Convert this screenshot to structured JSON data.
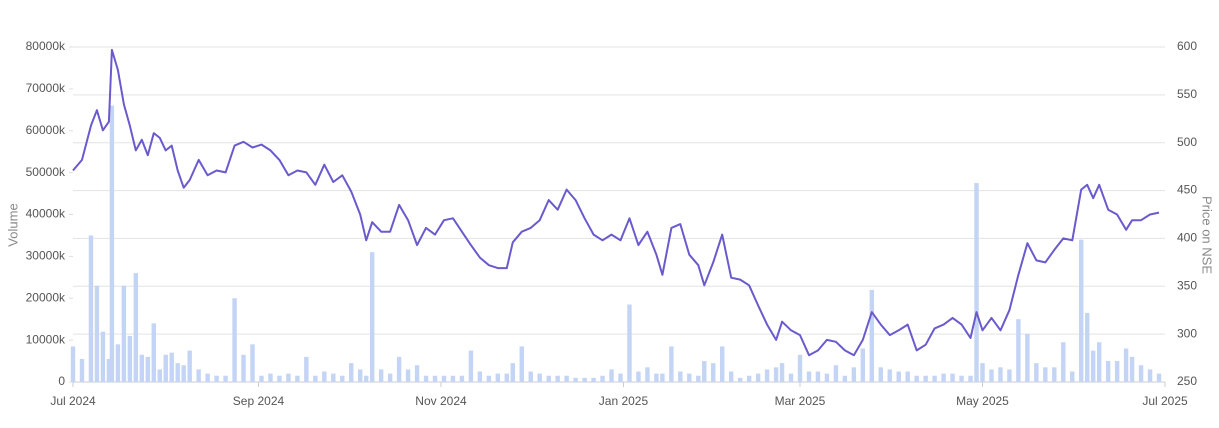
{
  "chart_data": {
    "type": "bar-line",
    "y_label": "Volume",
    "y2_label": "Price on NSE",
    "xlim": [
      0,
      365
    ],
    "xticks": [
      {
        "value": 0,
        "label": "Jul 2024"
      },
      {
        "value": 62,
        "label": "Sep 2024"
      },
      {
        "value": 123,
        "label": "Nov 2024"
      },
      {
        "value": 184,
        "label": "Jan 2025"
      },
      {
        "value": 243,
        "label": "Mar 2025"
      },
      {
        "value": 304,
        "label": "May 2025"
      },
      {
        "value": 365,
        "label": "Jul 2025"
      }
    ],
    "ylim": [
      0,
      80000000
    ],
    "yticks": [
      0,
      {
        "value": 10000000,
        "label": "10000k"
      },
      {
        "value": 20000000,
        "label": "20000k"
      },
      {
        "value": 30000000,
        "label": "30000k"
      },
      {
        "value": 40000000,
        "label": "40000k"
      },
      {
        "value": 50000000,
        "label": "50000k"
      },
      {
        "value": 60000000,
        "label": "60000k"
      },
      {
        "value": 70000000,
        "label": "70000k"
      },
      {
        "value": 80000000,
        "label": "80000k"
      }
    ],
    "y2lim": [
      250,
      600
    ],
    "y2ticks": [
      250,
      300,
      350,
      400,
      450,
      500,
      550,
      600
    ],
    "grid": true,
    "x": [
      0,
      3,
      6,
      8,
      10,
      12,
      13,
      15,
      17,
      19,
      21,
      23,
      25,
      27,
      29,
      31,
      33,
      35,
      37,
      39,
      42,
      45,
      48,
      51,
      54,
      57,
      60,
      63,
      66,
      69,
      72,
      75,
      78,
      81,
      84,
      87,
      90,
      93,
      96,
      98,
      100,
      103,
      106,
      109,
      112,
      115,
      118,
      121,
      124,
      127,
      130,
      133,
      136,
      139,
      142,
      145,
      147,
      150,
      153,
      156,
      159,
      162,
      165,
      168,
      171,
      174,
      177,
      180,
      183,
      186,
      189,
      192,
      195,
      197,
      200,
      203,
      206,
      209,
      211,
      214,
      217,
      220,
      223,
      226,
      229,
      232,
      235,
      237,
      240,
      243,
      246,
      249,
      252,
      255,
      258,
      261,
      264,
      267,
      270,
      273,
      276,
      279,
      282,
      285,
      288,
      291,
      294,
      297,
      300,
      302,
      304,
      307,
      310,
      313,
      316,
      319,
      322,
      325,
      328,
      331,
      334,
      337,
      339,
      341,
      343,
      346,
      349,
      352,
      354,
      357,
      360,
      363
    ],
    "series": [
      {
        "kind": "bar",
        "axis": "y",
        "color": "#c3d4f5",
        "values": [
          8500000,
          5500000,
          35000000,
          23000000,
          12000000,
          5500000,
          66000000,
          9000000,
          23000000,
          11000000,
          26000000,
          6500000,
          6000000,
          14000000,
          3000000,
          6500000,
          7000000,
          4500000,
          4000000,
          7500000,
          3000000,
          2000000,
          1500000,
          1500000,
          20000000,
          6500000,
          9000000,
          1500000,
          2000000,
          1500000,
          2000000,
          1500000,
          6000000,
          1500000,
          2500000,
          2000000,
          1500000,
          4500000,
          3000000,
          1500000,
          31000000,
          3000000,
          2000000,
          6000000,
          3000000,
          4000000,
          1500000,
          1500000,
          1500000,
          1500000,
          1500000,
          7500000,
          2500000,
          1500000,
          2000000,
          2000000,
          4500000,
          8500000,
          2500000,
          2000000,
          1500000,
          1500000,
          1500000,
          1000000,
          1000000,
          1000000,
          1500000,
          3000000,
          2000000,
          18500000,
          2500000,
          3500000,
          2000000,
          2000000,
          8500000,
          2500000,
          2000000,
          1500000,
          5000000,
          4500000,
          8500000,
          2500000,
          1000000,
          1500000,
          2000000,
          3000000,
          3500000,
          4500000,
          2000000,
          6500000,
          2500000,
          2500000,
          2000000,
          4000000,
          1500000,
          3500000,
          8000000,
          22000000,
          3500000,
          3000000,
          2500000,
          2500000,
          1500000,
          1500000,
          1500000,
          2000000,
          2000000,
          1500000,
          1500000,
          47500000,
          4500000,
          3000000,
          3500000,
          3000000,
          15000000,
          11500000,
          4500000,
          3500000,
          3500000,
          9500000,
          2500000,
          34000000,
          16500000,
          7500000,
          9500000,
          5000000,
          5000000,
          8000000,
          6000000,
          4000000,
          3000000,
          2000000
        ]
      },
      {
        "kind": "line",
        "axis": "y2",
        "color": "#6a5acd",
        "values": [
          471,
          482,
          518,
          534,
          513,
          522,
          597,
          576,
          540,
          518,
          492,
          503,
          487,
          510,
          505,
          492,
          497,
          471,
          453,
          461,
          482,
          466,
          471,
          469,
          497,
          501,
          495,
          498,
          492,
          482,
          466,
          471,
          469,
          456,
          477,
          459,
          466,
          449,
          425,
          398,
          417,
          407,
          407,
          435,
          419,
          393,
          411,
          404,
          419,
          421,
          407,
          393,
          380,
          372,
          369,
          369,
          396,
          407,
          411,
          419,
          440,
          430,
          451,
          440,
          421,
          404,
          398,
          404,
          398,
          421,
          393,
          407,
          383,
          362,
          411,
          415,
          383,
          372,
          351,
          375,
          404,
          359,
          357,
          351,
          330,
          310,
          294,
          313,
          304,
          299,
          278,
          283,
          294,
          292,
          283,
          278,
          294,
          323,
          310,
          299,
          304,
          310,
          283,
          289,
          306,
          310,
          317,
          310,
          296,
          323,
          304,
          317,
          304,
          325,
          362,
          395,
          377,
          375,
          388,
          400,
          398,
          451,
          456,
          442,
          456,
          430,
          425,
          409,
          419,
          419,
          425,
          427
        ]
      }
    ]
  }
}
